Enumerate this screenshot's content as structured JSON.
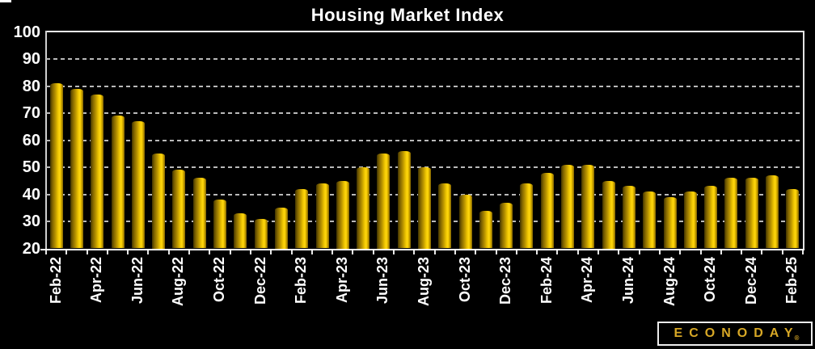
{
  "title": "Housing Market Index",
  "y_axis": {
    "labels": [
      "100",
      "90",
      "80",
      "70",
      "60",
      "50",
      "40",
      "30",
      "20"
    ]
  },
  "x_axis": {
    "tick_labels": [
      "Feb-22",
      "Apr-22",
      "Jun-22",
      "Aug-22",
      "Oct-22",
      "Dec-22",
      "Feb-23",
      "Apr-23",
      "Jun-23",
      "Aug-23",
      "Oct-23",
      "Dec-23",
      "Feb-24",
      "Apr-24",
      "Jun-24",
      "Aug-24",
      "Oct-24",
      "Dec-24",
      "Feb-25"
    ]
  },
  "logo": {
    "brand": "ECONODAY",
    "registered_mark": "®"
  },
  "colors": {
    "background": "#000000",
    "bar_bright": "#FFD700",
    "bar_dark": "#4a3a00",
    "grid": "#b9b9b9",
    "text": "#ffffff",
    "logo_gold": "#D8A826"
  },
  "chart_data": {
    "type": "bar",
    "title": "Housing Market Index",
    "categories": [
      "Feb-22",
      "Mar-22",
      "Apr-22",
      "May-22",
      "Jun-22",
      "Jul-22",
      "Aug-22",
      "Sep-22",
      "Oct-22",
      "Nov-22",
      "Dec-22",
      "Jan-23",
      "Feb-23",
      "Mar-23",
      "Apr-23",
      "May-23",
      "Jun-23",
      "Jul-23",
      "Aug-23",
      "Sep-23",
      "Oct-23",
      "Nov-23",
      "Dec-23",
      "Jan-24",
      "Feb-24",
      "Mar-24",
      "Apr-24",
      "May-24",
      "Jun-24",
      "Jul-24",
      "Aug-24",
      "Sep-24",
      "Oct-24",
      "Nov-24",
      "Dec-24",
      "Jan-25",
      "Feb-25"
    ],
    "values": [
      81,
      79,
      77,
      69,
      67,
      55,
      49,
      46,
      38,
      33,
      31,
      35,
      42,
      44,
      45,
      50,
      55,
      56,
      50,
      44,
      40,
      34,
      37,
      44,
      48,
      51,
      51,
      45,
      43,
      41,
      39,
      41,
      43,
      46,
      46,
      47,
      42
    ],
    "xlabel": "",
    "ylabel": "",
    "ylim": [
      20,
      100
    ],
    "ytick_step": 10,
    "x_labels_shown_every": 2,
    "grid": "horizontal-dashed",
    "legend": "none",
    "bar_style": "gold cylinder gradient on black background"
  }
}
